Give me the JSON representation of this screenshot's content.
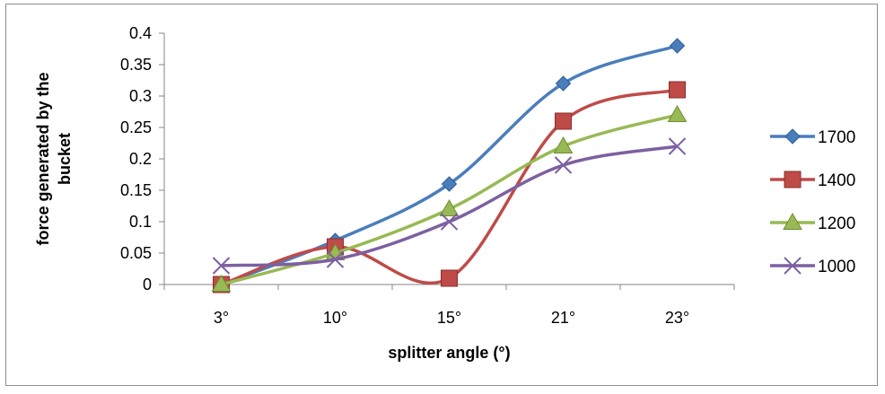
{
  "chart_data": {
    "type": "line",
    "categories": [
      "3°",
      "10°",
      "15°",
      "21°",
      "23°"
    ],
    "series": [
      {
        "name": "1700",
        "values": [
          0.0,
          0.07,
          0.16,
          0.32,
          0.38
        ],
        "color": "#4a7ebb",
        "marker": "diamond"
      },
      {
        "name": "1400",
        "values": [
          0.0,
          0.06,
          0.01,
          0.26,
          0.31
        ],
        "color": "#be4b48",
        "marker": "square"
      },
      {
        "name": "1200",
        "values": [
          0.0,
          0.05,
          0.12,
          0.22,
          0.27
        ],
        "color": "#98b954",
        "marker": "triangle"
      },
      {
        "name": "1000",
        "values": [
          0.03,
          0.04,
          0.1,
          0.19,
          0.22
        ],
        "color": "#7d60a0",
        "marker": "x"
      }
    ],
    "title": "",
    "xlabel": "splitter angle (°)",
    "ylabel": "force generated by the bucket",
    "ylim": [
      0,
      0.4
    ],
    "yticks": [
      "0",
      "0.05",
      "0.1",
      "0.15",
      "0.2",
      "0.25",
      "0.3",
      "0.35",
      "0.4"
    ],
    "grid": false,
    "legend": "right"
  }
}
